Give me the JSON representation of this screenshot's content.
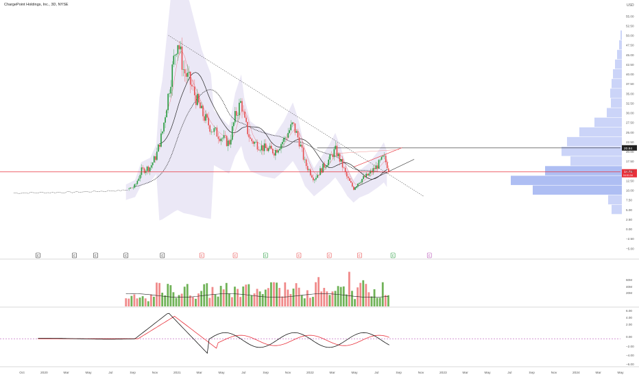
{
  "title": "ChargePoint Holdings, Inc., 3D, NYSE",
  "colors": {
    "up": "#22993a",
    "down": "#e84c4c",
    "volume_up": "#6fb257",
    "volume_down": "#f08a8a",
    "band": "#e9e6f5",
    "profile": "#b9c6f5",
    "profile_strong": "#93a8ef",
    "price_line": "#e8303a",
    "resistance_line": "#2a2a2a",
    "macd_line": "#111111",
    "signal_line": "#e8303a",
    "zero_line": "#b44fb4",
    "grid": "#f2f2f2",
    "axis_text": "#555555"
  },
  "axis": {
    "currency": "USD",
    "price_ticks": [
      "55.00",
      "52.50",
      "50.00",
      "47.50",
      "45.00",
      "42.50",
      "40.00",
      "37.50",
      "35.00",
      "32.50",
      "30.00",
      "27.50",
      "25.00",
      "22.50",
      "20.00",
      "17.50",
      "15.00",
      "12.50",
      "10.00",
      "7.50",
      "5.00",
      "2.50",
      "0.00",
      "−2.50",
      "−5.00"
    ],
    "volume_ticks": [
      "60M",
      "40M",
      "20M"
    ],
    "macd_ticks": [
      "6.00",
      "4.00",
      "2.00",
      "0.00",
      "−2.00",
      "−4.00",
      "−6.00"
    ],
    "time_labels": [
      "Oct",
      "2020",
      "Mar",
      "May",
      "Jul",
      "Sep",
      "Nov",
      "2021",
      "Mar",
      "May",
      "Jul",
      "Sep",
      "Nov",
      "2022",
      "Mar",
      "May",
      "Jul",
      "Sep",
      "Nov",
      "2023",
      "Mar",
      "May",
      "Jul",
      "Sep",
      "Nov",
      "2024",
      "Mar",
      "May"
    ]
  },
  "price_labels": {
    "resistance": "20.94",
    "current": "14.75",
    "countdown": "04:51:34"
  },
  "earnings_markers": [
    {
      "t": 0.04,
      "label": "E",
      "color": "#333333"
    },
    {
      "t": 0.1,
      "label": "E",
      "color": "#333333"
    },
    {
      "t": 0.135,
      "label": "E",
      "color": "#333333"
    },
    {
      "t": 0.185,
      "label": "E",
      "color": "#333333"
    },
    {
      "t": 0.245,
      "label": "E",
      "color": "#333333"
    },
    {
      "t": 0.31,
      "label": "E",
      "color": "#e84c4c"
    },
    {
      "t": 0.365,
      "label": "E",
      "color": "#e84c4c"
    },
    {
      "t": 0.415,
      "label": "E",
      "color": "#22993a"
    },
    {
      "t": 0.47,
      "label": "E",
      "color": "#e84c4c"
    },
    {
      "t": 0.52,
      "label": "E",
      "color": "#e84c4c"
    },
    {
      "t": 0.57,
      "label": "E",
      "color": "#e84c4c"
    },
    {
      "t": 0.625,
      "label": "E",
      "color": "#22993a"
    },
    {
      "t": 0.685,
      "label": "E",
      "color": "#b44fb4"
    }
  ],
  "chart_data": {
    "type": "candlestick",
    "title": "ChargePoint Holdings, Inc., 3D, NYSE",
    "ylim": [
      -6,
      57
    ],
    "price_series_approx": [
      [
        0.0,
        9.3
      ],
      [
        0.1,
        9.5
      ],
      [
        0.185,
        10.0
      ],
      [
        0.2,
        11.0
      ],
      [
        0.21,
        15.0
      ],
      [
        0.225,
        16.0
      ],
      [
        0.235,
        19.0
      ],
      [
        0.245,
        25.0
      ],
      [
        0.255,
        35.0
      ],
      [
        0.265,
        45.0
      ],
      [
        0.27,
        49.0
      ],
      [
        0.28,
        41.0
      ],
      [
        0.29,
        38.0
      ],
      [
        0.3,
        34.0
      ],
      [
        0.31,
        30.0
      ],
      [
        0.325,
        26.0
      ],
      [
        0.34,
        24.0
      ],
      [
        0.355,
        22.0
      ],
      [
        0.365,
        29.0
      ],
      [
        0.375,
        33.0
      ],
      [
        0.38,
        28.0
      ],
      [
        0.39,
        23.0
      ],
      [
        0.41,
        21.0
      ],
      [
        0.43,
        20.0
      ],
      [
        0.445,
        23.0
      ],
      [
        0.46,
        27.0
      ],
      [
        0.47,
        23.0
      ],
      [
        0.48,
        17.0
      ],
      [
        0.495,
        13.0
      ],
      [
        0.51,
        16.0
      ],
      [
        0.52,
        18.0
      ],
      [
        0.53,
        20.5
      ],
      [
        0.54,
        17.0
      ],
      [
        0.55,
        13.0
      ],
      [
        0.56,
        10.5
      ],
      [
        0.57,
        12.5
      ],
      [
        0.585,
        14.0
      ],
      [
        0.6,
        16.5
      ],
      [
        0.61,
        18.5
      ],
      [
        0.62,
        14.75
      ]
    ],
    "resistance": 20.94,
    "current_price": 14.75,
    "volume_range_M": [
      0,
      70
    ],
    "macd_range": [
      -6,
      7
    ]
  }
}
